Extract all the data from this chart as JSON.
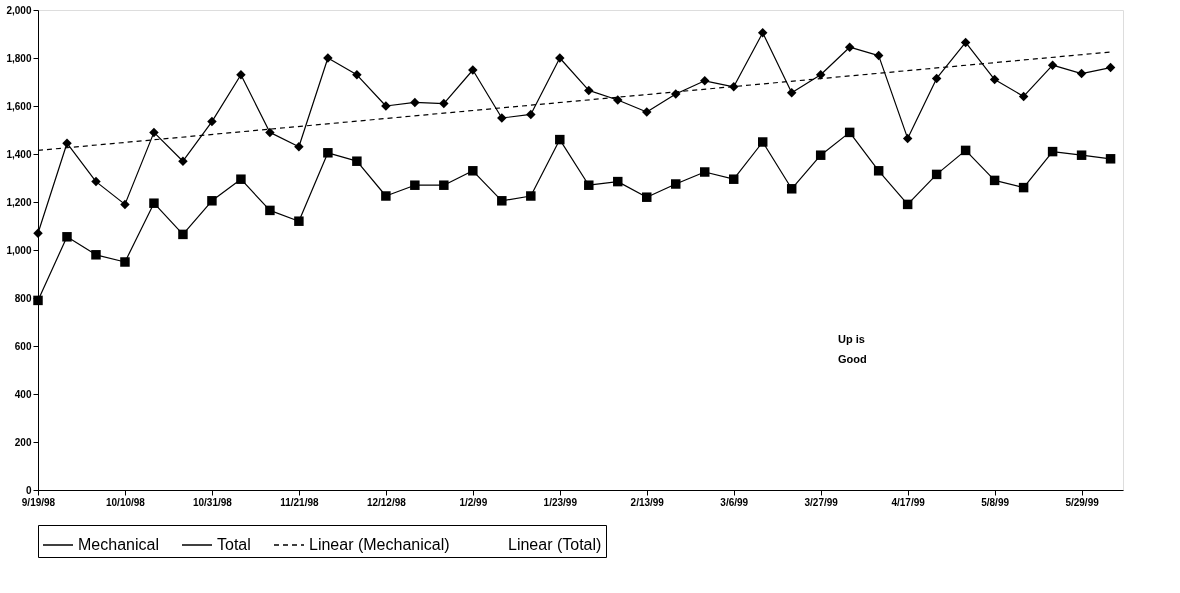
{
  "chart_data": {
    "type": "line",
    "x": [
      "1998-09-19",
      "1998-09-26",
      "1998-10-03",
      "1998-10-10",
      "1998-10-17",
      "1998-10-24",
      "1998-10-31",
      "1998-11-07",
      "1998-11-14",
      "1998-11-21",
      "1998-11-28",
      "1998-12-05",
      "1998-12-12",
      "1998-12-19",
      "1998-12-26",
      "1999-01-02",
      "1999-01-09",
      "1999-01-16",
      "1999-01-23",
      "1999-01-30",
      "1999-02-06",
      "1999-02-13",
      "1999-02-20",
      "1999-02-27",
      "1999-03-06",
      "1999-03-13",
      "1999-03-20",
      "1999-03-27",
      "1999-04-03",
      "1999-04-10",
      "1999-04-17",
      "1999-04-24",
      "1999-05-01",
      "1999-05-08",
      "1999-05-15",
      "1999-05-22",
      "1999-05-29",
      "1999-06-05"
    ],
    "series": [
      {
        "name": "Mechanical",
        "color": "#000000",
        "marker": "diamond",
        "values": [
          1070,
          1445,
          1285,
          1190,
          1490,
          1370,
          1535,
          1730,
          1490,
          1430,
          1800,
          1730,
          1600,
          1615,
          1610,
          1750,
          1550,
          1565,
          1800,
          1665,
          1625,
          1575,
          1650,
          1705,
          1680,
          1905,
          1655,
          1730,
          1845,
          1810,
          1465,
          1715,
          1865,
          1710,
          1640,
          1770,
          1735,
          1760
        ]
      },
      {
        "name": "Total",
        "color": "#000000",
        "marker": "square",
        "values": [
          790,
          1055,
          980,
          950,
          1195,
          1065,
          1205,
          1295,
          1165,
          1120,
          1405,
          1370,
          1225,
          1270,
          1270,
          1330,
          1205,
          1225,
          1460,
          1270,
          1285,
          1220,
          1275,
          1325,
          1295,
          1450,
          1255,
          1395,
          1490,
          1330,
          1190,
          1315,
          1415,
          1290,
          1260,
          1410,
          1395,
          1380
        ]
      },
      {
        "name": "Linear (Mechanical)",
        "color": "#000000",
        "marker": "none",
        "line_style": "dashed",
        "x": [
          "1998-09-19",
          "1999-06-05"
        ],
        "values": [
          1415,
          1825
        ]
      },
      {
        "name": "Linear (Total)",
        "values": [
          null,
          null,
          null,
          null,
          null,
          null,
          null,
          null,
          null,
          null,
          null,
          null,
          null,
          null,
          null,
          null,
          null,
          null,
          null,
          null,
          null,
          null,
          null,
          null,
          null,
          null,
          null,
          null,
          null,
          null,
          null,
          null,
          null,
          null,
          null,
          null,
          null,
          null
        ]
      }
    ],
    "xlim": [
      "1998-09-19",
      "1999-06-08"
    ],
    "xticks": [
      {
        "value": "1998-09-19",
        "label": "9/19/98"
      },
      {
        "value": "1998-10-10",
        "label": "10/10/98"
      },
      {
        "value": "1998-10-31",
        "label": "10/31/98"
      },
      {
        "value": "1998-11-21",
        "label": "11/21/98"
      },
      {
        "value": "1998-12-12",
        "label": "12/12/98"
      },
      {
        "value": "1999-01-02",
        "label": "1/2/99"
      },
      {
        "value": "1999-01-23",
        "label": "1/23/99"
      },
      {
        "value": "1999-02-13",
        "label": "2/13/99"
      },
      {
        "value": "1999-03-06",
        "label": "3/6/99"
      },
      {
        "value": "1999-03-27",
        "label": "3/27/99"
      },
      {
        "value": "1999-04-17",
        "label": "4/17/99"
      },
      {
        "value": "1999-05-08",
        "label": "5/8/99"
      },
      {
        "value": "1999-05-29",
        "label": "5/29/99"
      }
    ],
    "ylim": [
      0,
      2000
    ],
    "yticks": [
      {
        "value": 0,
        "label": "0"
      },
      {
        "value": 200,
        "label": "200"
      },
      {
        "value": 400,
        "label": "400"
      },
      {
        "value": 600,
        "label": "600"
      },
      {
        "value": 800,
        "label": "800"
      },
      {
        "value": 1000,
        "label": "1,000"
      },
      {
        "value": 1200,
        "label": "1,200"
      },
      {
        "value": 1400,
        "label": "1,400"
      },
      {
        "value": 1600,
        "label": "1,600"
      },
      {
        "value": 1800,
        "label": "1,800"
      },
      {
        "value": 2000,
        "label": "2,000"
      }
    ],
    "annotations": [
      "Up is Good"
    ],
    "grid": false,
    "legend": "bottom",
    "line_style": "solid"
  }
}
